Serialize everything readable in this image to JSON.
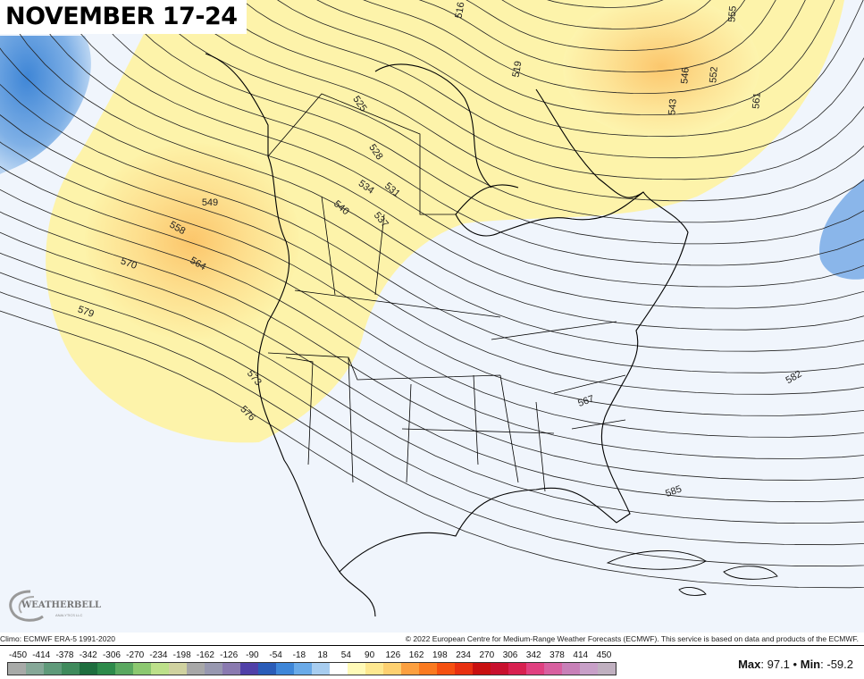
{
  "title": "NOVEMBER 17-24",
  "logo": {
    "name": "WEATHERBELL",
    "sub": "ANALYTICS LLC"
  },
  "credits": {
    "climo": "Climo: ECMWF ERA-5 1991-2020",
    "copyright": "© 2022 European Centre for Medium-Range Weather Forecasts (ECMWF). This service is based on data and products of the ECMWF."
  },
  "colorbar": {
    "labels": [
      "-450",
      "-414",
      "-378",
      "-342",
      "-306",
      "-270",
      "-234",
      "-198",
      "-162",
      "-126",
      "-90",
      "-54",
      "-18",
      "18",
      "54",
      "90",
      "126",
      "162",
      "198",
      "234",
      "270",
      "306",
      "342",
      "378",
      "414",
      "450"
    ],
    "colors": [
      "#a8aaa8",
      "#86a898",
      "#5f9a7a",
      "#3f8a5c",
      "#1e6e3e",
      "#2d8a4a",
      "#5aa860",
      "#8cc870",
      "#bde08a",
      "#d0d2a0",
      "#a8a8a8",
      "#9898b0",
      "#8a7ab0",
      "#5040a8",
      "#2a5cb8",
      "#3e86d8",
      "#6aaae8",
      "#a8cdf0",
      "#ffffff",
      "#fffab8",
      "#fee890",
      "#fdd070",
      "#fca040",
      "#fa7a20",
      "#f55010",
      "#e83010",
      "#c81010",
      "#c8102e",
      "#d82050",
      "#e04080",
      "#d860a0",
      "#c880b8",
      "#c8a0c8",
      "#c0b0c0"
    ]
  },
  "stats": {
    "max_label": "Max",
    "max": "97.1",
    "sep": "•",
    "min_label": "Min",
    "min": "-59.2"
  },
  "contour_labels": [
    "516",
    "519",
    "543",
    "546",
    "552",
    "555",
    "561",
    "525",
    "528",
    "531",
    "534",
    "540",
    "537",
    "549",
    "558",
    "564",
    "570",
    "579",
    "573",
    "576",
    "582",
    "567",
    "585"
  ],
  "colors": {
    "background": "#f0f5fc",
    "positive_anomaly": "#fdf2a8",
    "strong_positive": "#fbc86c",
    "negative_anomaly": "#4a8fd8"
  }
}
